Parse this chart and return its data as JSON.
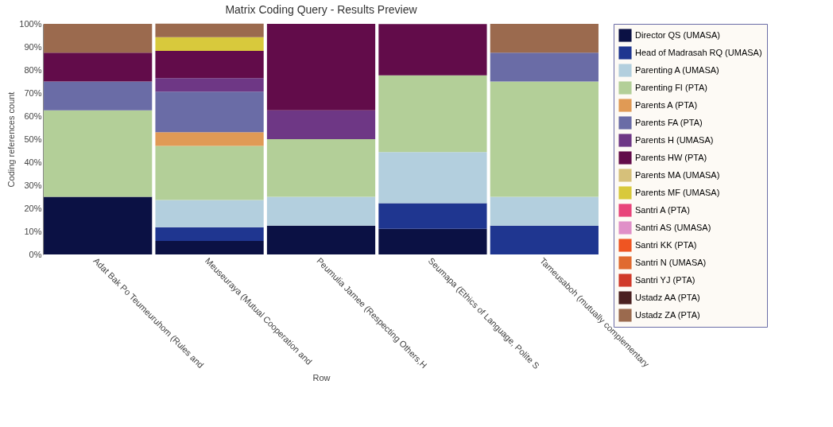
{
  "chart_data": {
    "type": "bar",
    "title": "Matrix Coding Query - Results Preview",
    "xlabel": "Row",
    "ylabel": "Coding references count",
    "stacked": true,
    "legend": "right",
    "grid": false,
    "categories": [
      "Adat Bak Po Teumeuruhom (Rules and",
      "Meuseuraya (Mutual Cooperation and",
      "Peumulia Jamee (Respecting Others,H",
      "Seumapa (Ethics of Language, Polite S",
      "Tameusaboh (mutually complementary"
    ],
    "ylim": [
      0,
      100
    ],
    "yticks": [
      {
        "value": 0,
        "label": "0%"
      },
      {
        "value": 10,
        "label": "10%"
      },
      {
        "value": 20,
        "label": "20%"
      },
      {
        "value": 30,
        "label": "30%"
      },
      {
        "value": 40,
        "label": "40%"
      },
      {
        "value": 50,
        "label": "50%"
      },
      {
        "value": 60,
        "label": "60%"
      },
      {
        "value": 70,
        "label": "70%"
      },
      {
        "value": 80,
        "label": "80%"
      },
      {
        "value": 90,
        "label": "90%"
      },
      {
        "value": 100,
        "label": "100%"
      }
    ],
    "series": [
      {
        "name": "Director QS (UMASA)",
        "color": "#0b1144",
        "values": [
          25,
          5.9,
          12.5,
          11.1,
          null
        ]
      },
      {
        "name": "Head of Madrasah RQ (UMASA)",
        "color": "#1f3690",
        "values": [
          null,
          5.9,
          null,
          11.1,
          12.5
        ]
      },
      {
        "name": "Parenting A (UMASA)",
        "color": "#b3cfde",
        "values": [
          null,
          11.8,
          12.5,
          22.2,
          12.5
        ]
      },
      {
        "name": "Parenting FI (PTA)",
        "color": "#b3cf98",
        "values": [
          37.5,
          23.5,
          25,
          33.3,
          50
        ]
      },
      {
        "name": "Parents A (PTA)",
        "color": "#e09a55",
        "values": [
          null,
          5.9,
          null,
          null,
          null
        ]
      },
      {
        "name": "Parents FA (PTA)",
        "color": "#6a6ca6",
        "values": [
          12.5,
          17.6,
          null,
          null,
          12.5
        ]
      },
      {
        "name": "Parents H (UMASA)",
        "color": "#6e3785",
        "values": [
          null,
          5.9,
          12.5,
          null,
          null
        ]
      },
      {
        "name": "Parents HW (PTA)",
        "color": "#620c4a",
        "values": [
          12.5,
          11.8,
          37.5,
          22.2,
          null
        ]
      },
      {
        "name": "Parents MA (UMASA)",
        "color": "#d6c07a",
        "values": [
          null,
          null,
          null,
          null,
          null
        ]
      },
      {
        "name": "Parents MF (UMASA)",
        "color": "#d8c93c",
        "values": [
          null,
          5.9,
          null,
          null,
          null
        ]
      },
      {
        "name": "Santri A (PTA)",
        "color": "#e8447a",
        "values": [
          null,
          null,
          null,
          null,
          null
        ]
      },
      {
        "name": "Santri AS (UMASA)",
        "color": "#e090c8",
        "values": [
          null,
          null,
          null,
          null,
          null
        ]
      },
      {
        "name": "Santri KK (PTA)",
        "color": "#ef5522",
        "values": [
          null,
          null,
          null,
          null,
          null
        ]
      },
      {
        "name": "Santri N (UMASA)",
        "color": "#e06a30",
        "values": [
          null,
          null,
          null,
          null,
          null
        ]
      },
      {
        "name": "Santri YJ (PTA)",
        "color": "#d03a2a",
        "values": [
          null,
          null,
          null,
          null,
          null
        ]
      },
      {
        "name": "Ustadz AA (PTA)",
        "color": "#4a2020",
        "values": [
          null,
          null,
          null,
          null,
          null
        ]
      },
      {
        "name": "Ustadz ZA (PTA)",
        "color": "#9b6a4e",
        "values": [
          12.5,
          5.9,
          null,
          null,
          12.5
        ]
      }
    ]
  }
}
